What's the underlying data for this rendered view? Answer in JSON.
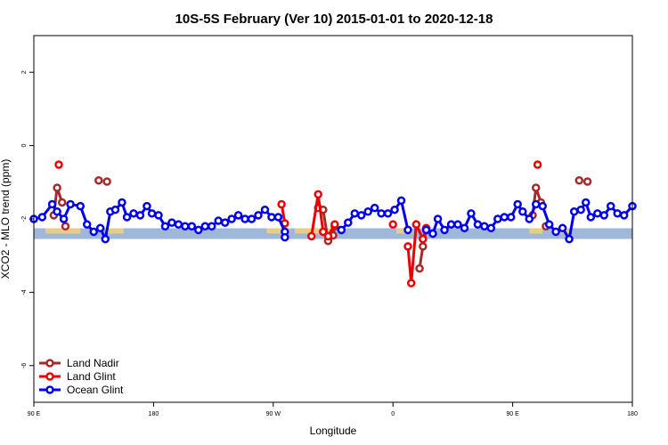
{
  "chart_data": {
    "type": "line",
    "title": "10S-5S February (Ver 10)   2015-01-01 to 2020-12-18",
    "xlabel": "Longitude",
    "ylabel": "XCO2 - MLO trend (ppm)",
    "xlim": [
      90,
      450
    ],
    "ylim": [
      -7,
      3
    ],
    "x_ticks": [
      {
        "value": 90,
        "label": "90 E"
      },
      {
        "value": 162,
        "label": "180"
      },
      {
        "value": 234,
        "label": "90 W"
      },
      {
        "value": 306,
        "label": "0"
      },
      {
        "value": 378,
        "label": "90 E"
      },
      {
        "value": 450,
        "label": "180"
      }
    ],
    "y_ticks": [
      -6,
      -4,
      -2,
      0,
      2
    ],
    "grid": false,
    "legend_position": "bottom-left",
    "band": {
      "y_center": -2.4,
      "color": "#9fb7d8",
      "highlight_color": "#f2d27a"
    },
    "series": [
      {
        "name": "Land Nadir",
        "color": "#a52a2a",
        "segments": [
          [
            [
              102,
              -1.9
            ],
            [
              104,
              -1.15
            ],
            [
              107,
              -1.55
            ]
          ],
          [
            [
              109,
              -2.2
            ]
          ],
          [
            [
              129,
              -0.95
            ]
          ],
          [
            [
              134,
              -0.98
            ]
          ],
          [
            [
              261,
              -1.7
            ],
            [
              264,
              -1.75
            ],
            [
              267,
              -2.6
            ],
            [
              270,
              -2.45
            ],
            [
              271,
              -2.2
            ]
          ],
          [
            [
              322,
              -3.35
            ],
            [
              324,
              -2.75
            ],
            [
              326,
              -2.3
            ]
          ],
          [
            [
              390,
              -1.9
            ],
            [
              392,
              -1.15
            ],
            [
              395,
              -1.55
            ]
          ],
          [
            [
              398,
              -2.2
            ]
          ],
          [
            [
              418,
              -0.95
            ]
          ],
          [
            [
              423,
              -0.98
            ]
          ]
        ]
      },
      {
        "name": "Land Glint",
        "color": "#ee0000",
        "segments": [
          [
            [
              105,
              -0.52
            ]
          ],
          [
            [
              239,
              -1.6
            ],
            [
              241,
              -2.12
            ]
          ],
          [
            [
              257,
              -2.47
            ],
            [
              261,
              -1.33
            ],
            [
              264,
              -2.35
            ],
            [
              267,
              -2.47
            ],
            [
              271,
              -2.15
            ]
          ],
          [
            [
              306,
              -2.15
            ]
          ],
          [
            [
              315,
              -2.75
            ],
            [
              317,
              -3.75
            ],
            [
              320,
              -2.15
            ],
            [
              324,
              -2.55
            ],
            [
              326,
              -2.25
            ]
          ],
          [
            [
              393,
              -0.52
            ]
          ]
        ]
      },
      {
        "name": "Ocean Glint",
        "color": "#0000ee",
        "segments": [
          [
            [
              90,
              -2.0
            ],
            [
              95,
              -1.95
            ],
            [
              101,
              -1.6
            ],
            [
              104,
              -1.8
            ],
            [
              108,
              -2.0
            ],
            [
              112,
              -1.6
            ],
            [
              118,
              -1.65
            ],
            [
              122,
              -2.15
            ],
            [
              126,
              -2.35
            ],
            [
              130,
              -2.25
            ],
            [
              133,
              -2.55
            ],
            [
              136,
              -1.8
            ],
            [
              139,
              -1.75
            ],
            [
              143,
              -1.55
            ],
            [
              146,
              -1.95
            ],
            [
              150,
              -1.85
            ],
            [
              154,
              -1.9
            ],
            [
              158,
              -1.65
            ],
            [
              161,
              -1.85
            ],
            [
              165,
              -1.9
            ],
            [
              169,
              -2.2
            ],
            [
              173,
              -2.1
            ],
            [
              177,
              -2.15
            ],
            [
              181,
              -2.2
            ],
            [
              185,
              -2.2
            ],
            [
              189,
              -2.3
            ],
            [
              193,
              -2.2
            ],
            [
              197,
              -2.2
            ],
            [
              201,
              -2.05
            ],
            [
              205,
              -2.1
            ],
            [
              209,
              -2.0
            ],
            [
              213,
              -1.9
            ],
            [
              217,
              -2.0
            ],
            [
              221,
              -2.0
            ],
            [
              225,
              -1.9
            ],
            [
              229,
              -1.75
            ],
            [
              233,
              -1.95
            ],
            [
              237,
              -1.95
            ],
            [
              241,
              -2.35
            ],
            [
              241,
              -2.5
            ]
          ],
          [
            [
              275,
              -2.3
            ],
            [
              279,
              -2.1
            ],
            [
              283,
              -1.85
            ],
            [
              287,
              -1.9
            ],
            [
              291,
              -1.8
            ],
            [
              295,
              -1.7
            ],
            [
              299,
              -1.85
            ],
            [
              303,
              -1.85
            ],
            [
              307,
              -1.75
            ],
            [
              311,
              -1.5
            ],
            [
              315,
              -2.3
            ]
          ],
          [
            [
              326,
              -2.3
            ],
            [
              330,
              -2.4
            ],
            [
              333,
              -2.0
            ],
            [
              337,
              -2.3
            ],
            [
              341,
              -2.15
            ],
            [
              345,
              -2.15
            ],
            [
              349,
              -2.25
            ],
            [
              353,
              -1.85
            ],
            [
              357,
              -2.15
            ],
            [
              361,
              -2.2
            ],
            [
              365,
              -2.25
            ],
            [
              369,
              -2.0
            ],
            [
              373,
              -1.95
            ],
            [
              377,
              -1.95
            ],
            [
              381,
              -1.6
            ],
            [
              384,
              -1.8
            ],
            [
              388,
              -2.0
            ],
            [
              392,
              -1.6
            ],
            [
              396,
              -1.65
            ],
            [
              400,
              -2.15
            ],
            [
              404,
              -2.35
            ],
            [
              408,
              -2.25
            ],
            [
              412,
              -2.55
            ],
            [
              415,
              -1.8
            ],
            [
              419,
              -1.75
            ],
            [
              422,
              -1.55
            ],
            [
              425,
              -1.95
            ],
            [
              429,
              -1.85
            ],
            [
              433,
              -1.9
            ],
            [
              437,
              -1.65
            ],
            [
              441,
              -1.85
            ],
            [
              445,
              -1.9
            ],
            [
              450,
              -1.65
            ]
          ]
        ]
      }
    ]
  }
}
